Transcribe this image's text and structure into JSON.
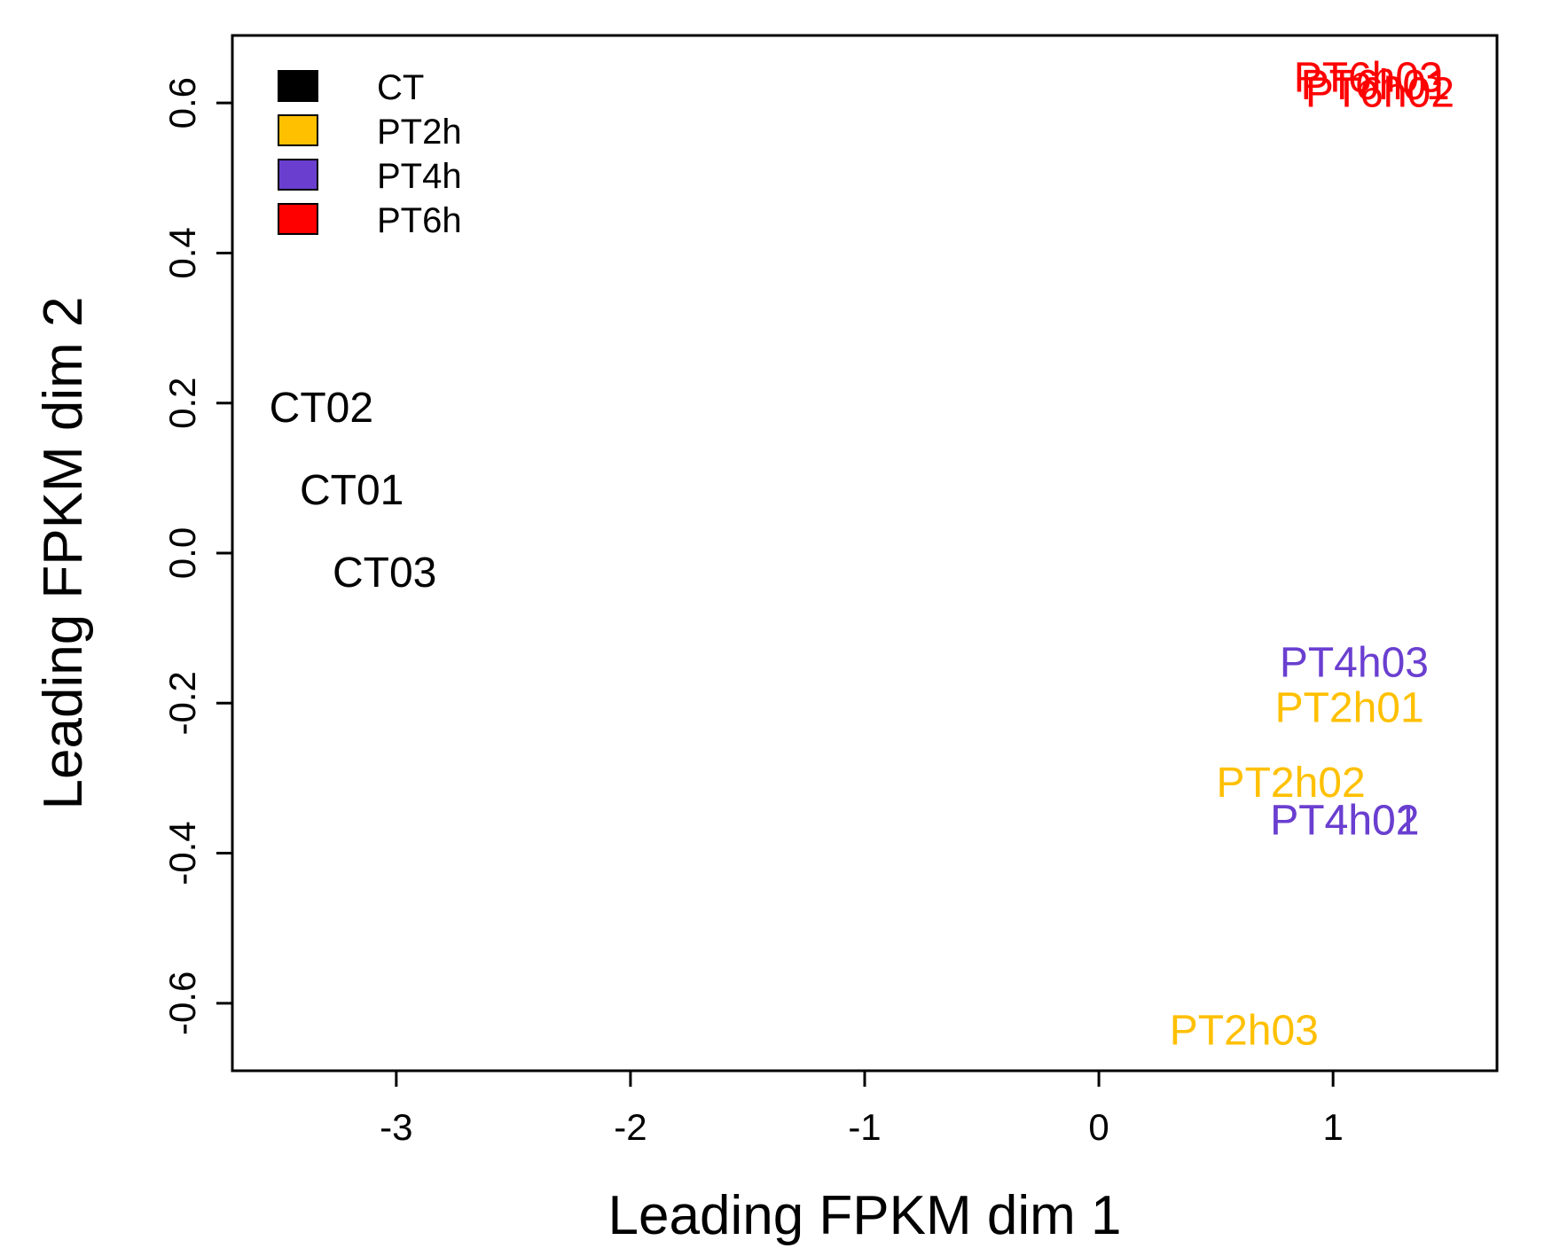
{
  "chart_data": {
    "type": "scatter",
    "title": "",
    "xlabel": "Leading FPKM dim 1",
    "ylabel": "Leading FPKM dim 2",
    "xlim": [
      -3.7,
      1.7
    ],
    "ylim": [
      -0.69,
      0.69
    ],
    "x_ticks": [
      -3,
      -2,
      -1,
      0,
      1
    ],
    "y_ticks": [
      -0.6,
      -0.4,
      -0.2,
      0.0,
      0.2,
      0.4,
      0.6
    ],
    "x_tick_labels": [
      "-3",
      "-2",
      "-1",
      "0",
      "1"
    ],
    "y_tick_labels": [
      "-0.6",
      "-0.4",
      "-0.2",
      "0.0",
      "0.2",
      "0.4",
      "0.6"
    ],
    "grid": false,
    "legend_position": "top-left",
    "groups": [
      {
        "name": "CT",
        "color": "#000000"
      },
      {
        "name": "PT2h",
        "color": "#FFC000"
      },
      {
        "name": "PT4h",
        "color": "#6A3FD0"
      },
      {
        "name": "PT6h",
        "color": "#FF0000"
      }
    ],
    "points": [
      {
        "label": "CT02",
        "group": "CT",
        "x": -3.32,
        "y": 0.19
      },
      {
        "label": "CT01",
        "group": "CT",
        "x": -3.19,
        "y": 0.08
      },
      {
        "label": "CT03",
        "group": "CT",
        "x": -3.05,
        "y": -0.03
      },
      {
        "label": "PT4h03",
        "group": "PT4h",
        "x": 1.09,
        "y": -0.15
      },
      {
        "label": "PT2h01",
        "group": "PT2h",
        "x": 1.07,
        "y": -0.21
      },
      {
        "label": "PT2h02",
        "group": "PT2h",
        "x": 0.82,
        "y": -0.31
      },
      {
        "label": "PT4h01",
        "group": "PT4h",
        "x": 1.05,
        "y": -0.36
      },
      {
        "label": "PT4h02",
        "group": "PT4h",
        "x": 1.05,
        "y": -0.36
      },
      {
        "label": "PT2h03",
        "group": "PT2h",
        "x": 0.62,
        "y": -0.64
      },
      {
        "label": "PT6h03",
        "group": "PT6h",
        "x": 1.15,
        "y": 0.63
      },
      {
        "label": "PT6h01",
        "group": "PT6h",
        "x": 1.18,
        "y": 0.62
      },
      {
        "label": "PT6h02",
        "group": "PT6h",
        "x": 1.2,
        "y": 0.61
      }
    ]
  }
}
